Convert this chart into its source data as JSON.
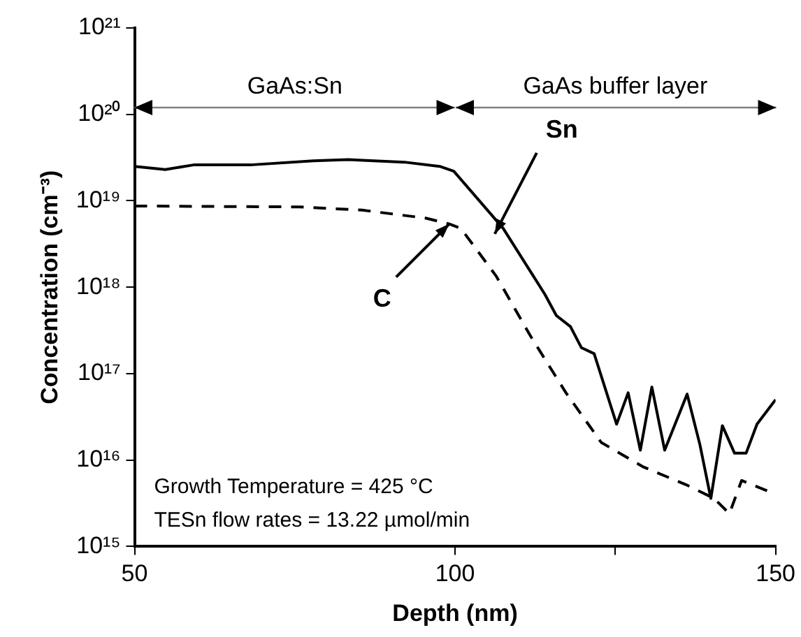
{
  "chart_data": {
    "type": "line",
    "xlabel": "Depth (nm)",
    "ylabel": "Concentration (cm⁻³)",
    "log": "y",
    "xlim": [
      50,
      150
    ],
    "xticks": [
      50,
      100,
      {
        "value": 125,
        "label": null
      },
      150
    ],
    "ylim": [
      1000000000000000.0,
      1e+21
    ],
    "yticks": [
      {
        "value": 1000000000000000.0,
        "label": "10¹⁵"
      },
      {
        "value": 1e+16,
        "label": "10¹⁶"
      },
      {
        "value": 1e+17,
        "label": "10¹⁷"
      },
      {
        "value": 1e+18,
        "label": "10¹⁸"
      },
      {
        "value": 1e+19,
        "label": "10¹⁹"
      },
      {
        "value": 1e+20,
        "label": "10²⁰"
      },
      {
        "value": 1e+21,
        "label": "10²¹"
      }
    ],
    "grid": false,
    "legend": false,
    "marker": "none",
    "annotations": [
      "GaAs:Sn",
      "GaAs buffer layer",
      "Growth Temperature = 425 °C",
      "TESn flow rates = 13.22 µmol/min"
    ],
    "series": [
      {
        "name": "Sn",
        "color": "#000000",
        "line_style": "solid",
        "x": [
          50,
          54.8,
          59.2,
          68,
          77.9,
          83.3,
          92.1,
          97.6,
          99.8,
          107.5,
          114,
          115.8,
          118,
          119.7,
          121.7,
          125.2,
          127,
          128.9,
          130.7,
          132.7,
          136.2,
          138.2,
          139.9,
          141.7,
          143.6,
          145.4,
          147.1,
          150
        ],
        "values": [
          2.5e+19,
          2.3e+19,
          2.6e+19,
          2.6e+19,
          2.9e+19,
          3e+19,
          2.8e+19,
          2.5e+19,
          2.2e+19,
          4.8e+18,
          8.3e+17,
          4.7e+17,
          3.5e+17,
          2e+17,
          1.7e+17,
          2.6e+16,
          6e+16,
          1.3e+16,
          7e+16,
          1.3e+16,
          5.8e+16,
          1.5e+16,
          3600000000000000.0,
          2.5e+16,
          1.2e+16,
          1.2e+16,
          2.6e+16,
          5e+16
        ]
      },
      {
        "name": "C",
        "color": "#000000",
        "line_style": "dashed",
        "x": [
          50,
          75.7,
          85.5,
          95.4,
          99.1,
          100.9,
          106.4,
          111.8,
          117.3,
          122.8,
          129.4,
          136,
          140.4,
          142.8,
          144.7,
          148.7
        ],
        "values": [
          8.7e+18,
          8.5e+18,
          7.8e+18,
          6.3e+18,
          5.4e+18,
          4.8e+18,
          1.35e+18,
          2.7e+17,
          6e+16,
          1.6e+16,
          8300000000000000.0,
          5200000000000000.0,
          3600000000000000.0,
          2400000000000000.0,
          5800000000000000.0,
          4400000000000000.0
        ]
      }
    ]
  }
}
